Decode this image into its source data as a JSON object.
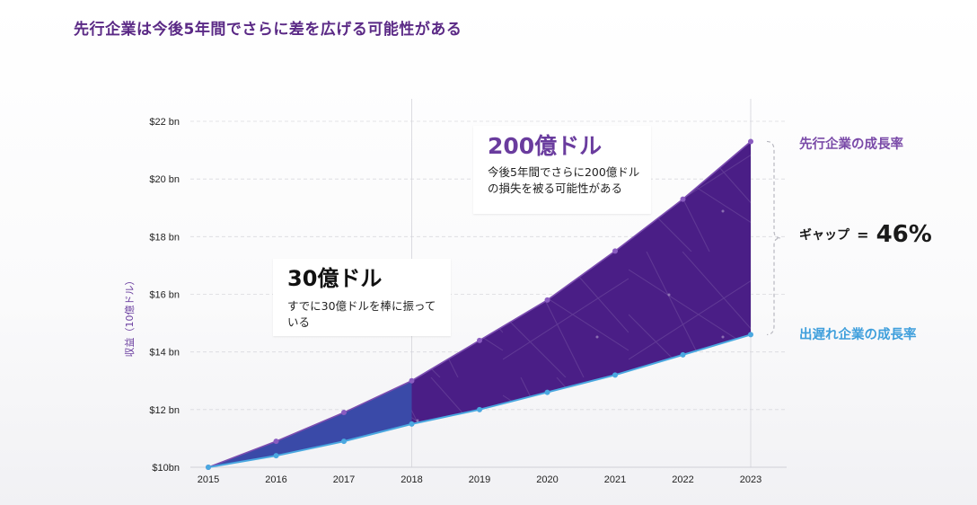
{
  "headline": "先行企業は今後5年間でさらに差を広げる可能性がある",
  "colors": {
    "leader": "#6a3c9e",
    "laggard": "#4aa8e0",
    "fill_purple": "#4a1e86",
    "fill_blue": "#3a4aa8",
    "title": "#5b2a86"
  },
  "chart_data": {
    "type": "area",
    "x": [
      2015,
      2016,
      2017,
      2018,
      2019,
      2020,
      2021,
      2022,
      2023
    ],
    "y_ticks": [
      "$10bn",
      "$12 bn",
      "$14 bn",
      "$16 bn",
      "$18 bn",
      "$20 bn",
      "$22 bn"
    ],
    "y_tick_values": [
      10,
      12,
      14,
      16,
      18,
      20,
      22
    ],
    "ylim": [
      10,
      22
    ],
    "ylabel": "収益（10億ドル）",
    "grid": true,
    "series": [
      {
        "name": "先行企業の成長率",
        "values": [
          10.0,
          10.9,
          11.9,
          13.0,
          14.4,
          15.8,
          17.5,
          19.3,
          21.3
        ]
      },
      {
        "name": "出遅れ企業の成長率",
        "values": [
          10.0,
          10.4,
          10.9,
          11.5,
          12.0,
          12.6,
          13.2,
          13.9,
          14.6
        ]
      }
    ],
    "annotations": {
      "past": {
        "big": "30億ドル",
        "sub": "すでに30億ドルを棒に振っている"
      },
      "future": {
        "big": "200億ドル",
        "sub": "今後5年間でさらに200億ドルの損失を被る可能性がある"
      },
      "gap": {
        "label": "ギャップ",
        "eq": "=",
        "value": "46%"
      }
    }
  }
}
